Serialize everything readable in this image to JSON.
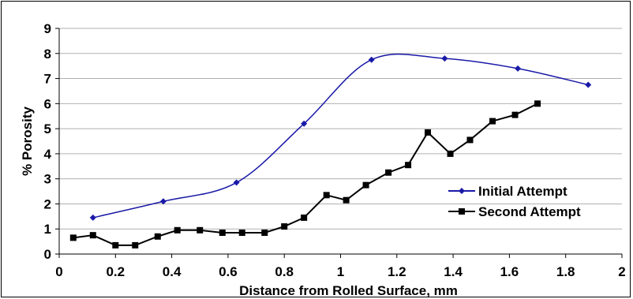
{
  "chart_data": {
    "type": "line",
    "title": "",
    "xlabel": "Distance from Rolled Surface, mm",
    "ylabel": "% Porosity",
    "xlim": [
      0,
      2
    ],
    "ylim": [
      0,
      9
    ],
    "x_ticks": [
      "0",
      "0.2",
      "0.4",
      "0.6",
      "0.8",
      "1",
      "1.2",
      "1.4",
      "1.6",
      "1.8",
      "2"
    ],
    "y_ticks": [
      "0",
      "1",
      "2",
      "3",
      "4",
      "5",
      "6",
      "7",
      "8",
      "9"
    ],
    "grid": "horizontal",
    "legend_position": "bottom-right",
    "series": [
      {
        "name": "Initial Attempt",
        "color": "#1a1aa8",
        "marker": "diamond",
        "smooth": true,
        "x": [
          0.12,
          0.37,
          0.63,
          0.87,
          1.11,
          1.37,
          1.63,
          1.88
        ],
        "y": [
          1.45,
          2.1,
          2.85,
          5.2,
          7.75,
          7.8,
          7.4,
          6.75
        ]
      },
      {
        "name": "Second Attempt",
        "color": "#000000",
        "marker": "square",
        "smooth": false,
        "x": [
          0.05,
          0.12,
          0.2,
          0.27,
          0.35,
          0.42,
          0.5,
          0.58,
          0.65,
          0.73,
          0.8,
          0.87,
          0.95,
          1.02,
          1.09,
          1.17,
          1.24,
          1.31,
          1.39,
          1.46,
          1.54,
          1.62,
          1.7
        ],
        "y": [
          0.65,
          0.75,
          0.35,
          0.35,
          0.7,
          0.95,
          0.95,
          0.85,
          0.85,
          0.85,
          1.1,
          1.45,
          2.35,
          2.15,
          2.75,
          3.25,
          3.55,
          4.85,
          4.0,
          4.55,
          5.3,
          5.55,
          6.0
        ]
      }
    ]
  }
}
